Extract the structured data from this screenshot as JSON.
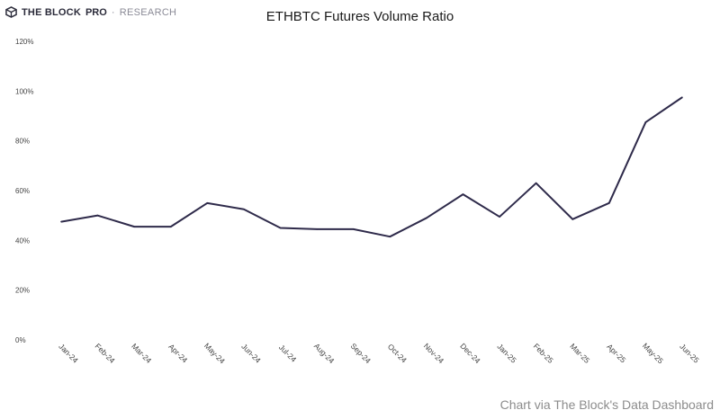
{
  "brand": {
    "name": "THE BLOCK",
    "pro": "PRO",
    "separator": "·",
    "sub": "RESEARCH",
    "logo_icon": "the-block-cube-icon"
  },
  "credit": "Chart via The Block's Data Dashboard",
  "colors": {
    "line": "#2e2a4a",
    "text": "#444444",
    "credit": "#8c8c8c"
  },
  "chart_data": {
    "type": "line",
    "title": "ETHBTC Futures Volume Ratio",
    "xlabel": "",
    "ylabel": "",
    "categories": [
      "Jan-24",
      "Feb-24",
      "Mar-24",
      "Apr-24",
      "May-24",
      "Jun-24",
      "Jul-24",
      "Aug-24",
      "Sep-24",
      "Oct-24",
      "Nov-24",
      "Dec-24",
      "Jan-25",
      "Feb-25",
      "Mar-25",
      "Apr-25",
      "May-25",
      "Jun-25"
    ],
    "series": [
      {
        "values": [
          47.5,
          50,
          45.5,
          45.5,
          55,
          52.5,
          45,
          44.5,
          44.5,
          41.5,
          49,
          58.5,
          49.5,
          63,
          48.5,
          55,
          87.5,
          97.5
        ]
      }
    ],
    "ylim": [
      0,
      120
    ],
    "yticks": [
      0,
      20,
      40,
      60,
      80,
      100,
      120
    ],
    "ytick_labels": [
      "0%",
      "20%",
      "40%",
      "60%",
      "80%",
      "100%",
      "120%"
    ],
    "grid": false,
    "legend": "none"
  }
}
